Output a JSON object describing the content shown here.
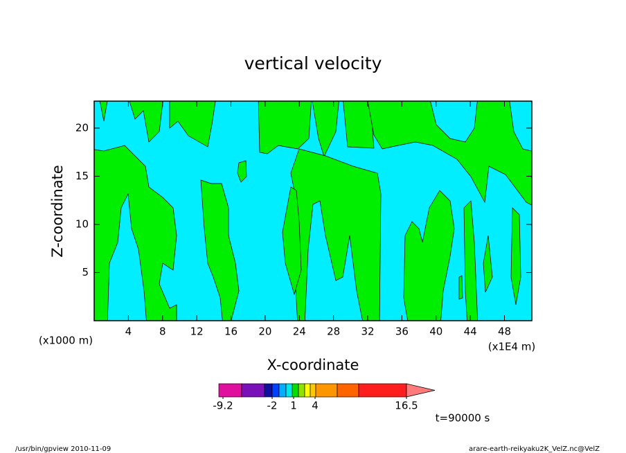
{
  "chart_data": {
    "type": "contour",
    "title": "vertical velocity",
    "x_label": "X-coordinate",
    "y_label": "Z-coordinate",
    "x_unit_label": "(x1E4 m)",
    "y_unit_label": "(x1000 m)",
    "xlim": [
      0,
      51.2
    ],
    "ylim": [
      0,
      22.8
    ],
    "xticks": [
      4,
      8,
      12,
      16,
      20,
      24,
      28,
      32,
      36,
      40,
      44,
      48
    ],
    "yticks": [
      5,
      10,
      15,
      20
    ],
    "colorbar_colors": [
      "#e0109e",
      "#7a10b8",
      "#1010a0",
      "#0040ff",
      "#00b0ff",
      "#00e8e8",
      "#00e000",
      "#90e000",
      "#ffff00",
      "#ffc800",
      "#ff9600",
      "#ff6400",
      "#ff1e1e",
      "#ff7a7a",
      "#ffb4b4"
    ],
    "colorbar_ticks": [
      -9.2,
      -2,
      1,
      4,
      16.5
    ],
    "time_label": "t=90000 s",
    "footer_left": "/usr/bin/gpview  2010-11-09",
    "footer_right": "arare-earth-reikyaku2K_VelZ.nc@VelZ"
  }
}
